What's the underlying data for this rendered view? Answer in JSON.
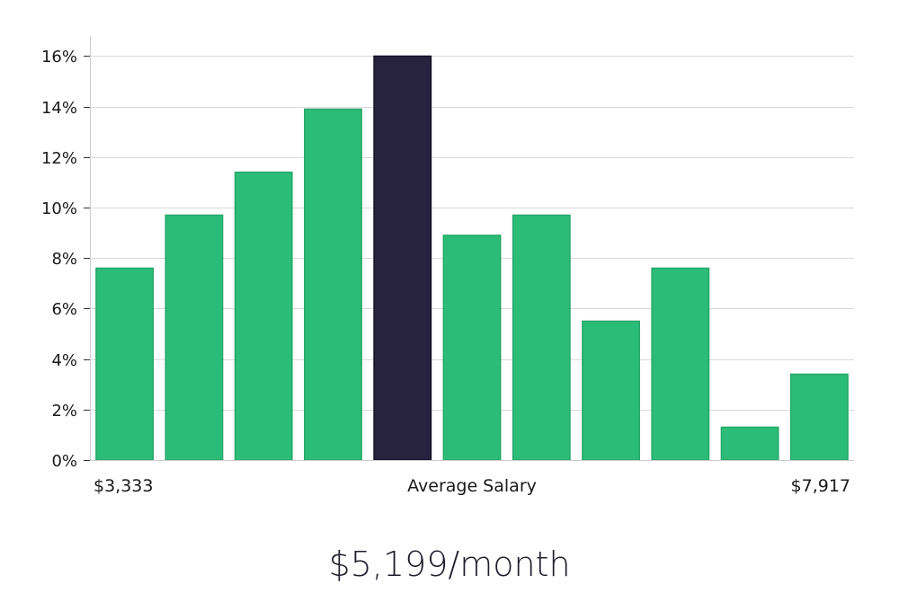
{
  "chart_data": {
    "type": "bar",
    "categories": [
      "1",
      "2",
      "3",
      "4",
      "5",
      "6",
      "7",
      "8",
      "9",
      "10",
      "11"
    ],
    "values": [
      7.6,
      9.7,
      11.4,
      13.9,
      16.0,
      8.9,
      9.7,
      5.5,
      7.6,
      1.3,
      3.4
    ],
    "highlight_index": 4,
    "colors": {
      "bar": "#2bbd77",
      "highlight": "#27233f"
    },
    "ylim": [
      0,
      16.8
    ],
    "yticks": [
      0,
      2,
      4,
      6,
      8,
      10,
      12,
      14,
      16
    ],
    "ytick_format": "percent",
    "grid": true,
    "x_labels": {
      "left": "$3,333",
      "center": "Average Salary",
      "right": "$7,917"
    }
  },
  "summary": {
    "text": "$5,199/month"
  }
}
